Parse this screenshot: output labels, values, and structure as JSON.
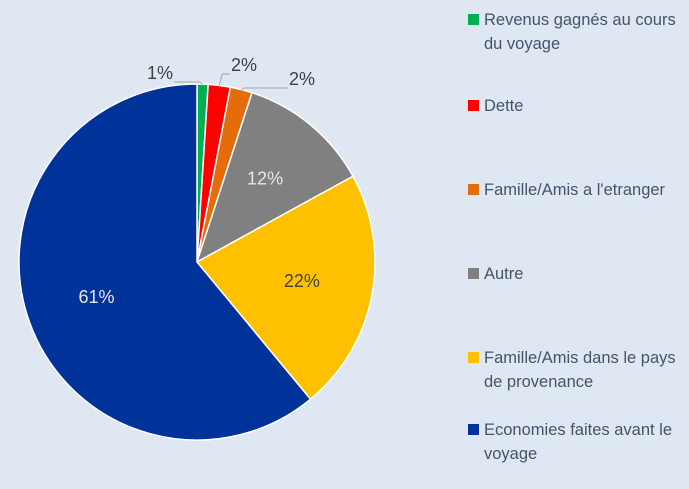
{
  "chart_data": {
    "type": "pie",
    "categories": [
      "Revenus gagnés au cours du voyage",
      "Dette",
      "Famille/Amis a l'etranger",
      "Autre",
      "Famille/Amis dans le pays de provenance",
      "Economies faites avant le voyage"
    ],
    "values": [
      1,
      2,
      2,
      12,
      22,
      61
    ],
    "value_labels": [
      "1%",
      "2%",
      "2%",
      "12%",
      "22%",
      "61%"
    ],
    "colors": [
      "#00b050",
      "#ff0000",
      "#e46c0a",
      "#808080",
      "#ffc000",
      "#003399"
    ],
    "legend": "right"
  }
}
